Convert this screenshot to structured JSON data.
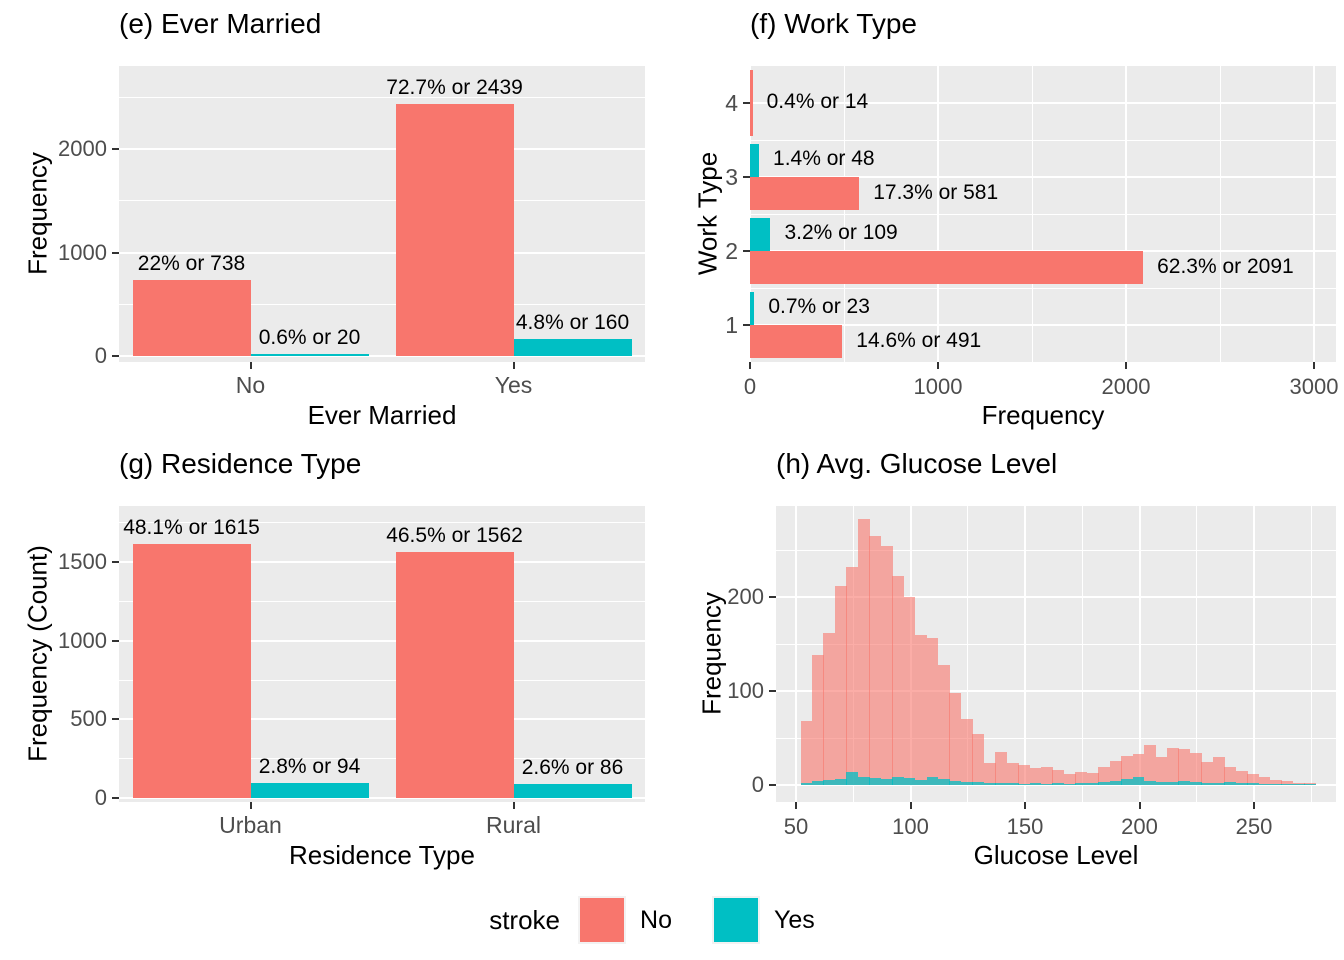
{
  "colors": {
    "stroke_no": "#F8766D",
    "stroke_yes": "#00BFC4",
    "panel_background": "#EBEBEB",
    "gridline": "#FFFFFF",
    "tick_label": "#4D4D4D"
  },
  "legend": {
    "title": "stroke",
    "items": [
      {
        "label": "No",
        "color": "#F8766D"
      },
      {
        "label": "Yes",
        "color": "#00BFC4"
      }
    ]
  },
  "chart_data": [
    {
      "type": "bar",
      "title": "(e) Ever Married",
      "xlabel": "Ever Married",
      "ylabel": "Frequency",
      "categories": [
        "No",
        "Yes"
      ],
      "series": [
        {
          "name": "No",
          "values": [
            738,
            2439
          ],
          "labels": [
            "22% or 738",
            "72.7% or 2439"
          ]
        },
        {
          "name": "Yes",
          "values": [
            20,
            160
          ],
          "labels": [
            "0.6% or 20",
            "4.8% or 160"
          ]
        }
      ],
      "y_ticks": [
        0,
        1000,
        2000
      ],
      "ylim": [
        0,
        2800
      ],
      "grid": true,
      "legend_position": "bottom-shared"
    },
    {
      "type": "bar-horizontal",
      "title": "(f) Work Type",
      "xlabel": "Frequency",
      "ylabel": "Work Type",
      "categories": [
        "1",
        "2",
        "3",
        "4"
      ],
      "series": [
        {
          "name": "No",
          "values": [
            491,
            2091,
            581,
            14
          ],
          "labels": [
            "14.6% or 491",
            "62.3% or 2091",
            "17.3% or 581",
            "0.4% or 14"
          ]
        },
        {
          "name": "Yes",
          "values": [
            23,
            109,
            48,
            0
          ],
          "labels": [
            "0.7% or 23",
            "3.2% or 109",
            "1.4% or 48",
            ""
          ]
        }
      ],
      "x_ticks": [
        0,
        1000,
        2000,
        3000
      ],
      "xlim": [
        0,
        3117
      ],
      "grid": true,
      "legend_position": "bottom-shared"
    },
    {
      "type": "bar",
      "title": "(g) Residence Type",
      "xlabel": "Residence Type",
      "ylabel": "Frequency (Count)",
      "categories": [
        "Urban",
        "Rural"
      ],
      "series": [
        {
          "name": "No",
          "values": [
            1615,
            1562
          ],
          "labels": [
            "48.1% or 1615",
            "46.5% or 1562"
          ]
        },
        {
          "name": "Yes",
          "values": [
            94,
            86
          ],
          "labels": [
            "2.8% or 94",
            "2.6% or 86"
          ]
        }
      ],
      "y_ticks": [
        0,
        500,
        1000,
        1500
      ],
      "ylim": [
        0,
        1860
      ],
      "grid": true,
      "legend_position": "bottom-shared"
    },
    {
      "type": "histogram",
      "title": "(h) Avg. Glucose Level",
      "xlabel": "Glucose Level",
      "ylabel": "Frequency",
      "bin_start": 52,
      "bin_width": 5,
      "series": [
        {
          "name": "No",
          "values": [
            68,
            138,
            162,
            212,
            232,
            283,
            265,
            254,
            222,
            200,
            160,
            156,
            128,
            98,
            70,
            54,
            23,
            35,
            23,
            21,
            18,
            19,
            16,
            12,
            14,
            13,
            19,
            26,
            31,
            33,
            43,
            30,
            39,
            38,
            34,
            24,
            30,
            19,
            15,
            12,
            8,
            5,
            4,
            2,
            2
          ]
        },
        {
          "name": "Yes",
          "values": [
            2,
            4,
            5,
            6,
            14,
            8,
            7,
            6,
            8,
            7,
            5,
            9,
            6,
            4,
            3,
            3,
            2,
            2,
            2,
            1,
            2,
            1,
            2,
            1,
            2,
            2,
            3,
            4,
            6,
            8,
            4,
            3,
            3,
            4,
            3,
            2,
            2,
            3,
            2,
            2,
            1,
            1,
            1,
            1,
            1
          ]
        }
      ],
      "x_ticks": [
        50,
        100,
        150,
        200,
        250
      ],
      "y_ticks": [
        0,
        100,
        200
      ],
      "xlim": [
        50,
        283
      ],
      "ylim": [
        0,
        297
      ],
      "grid": true,
      "legend_position": "bottom-shared"
    }
  ]
}
